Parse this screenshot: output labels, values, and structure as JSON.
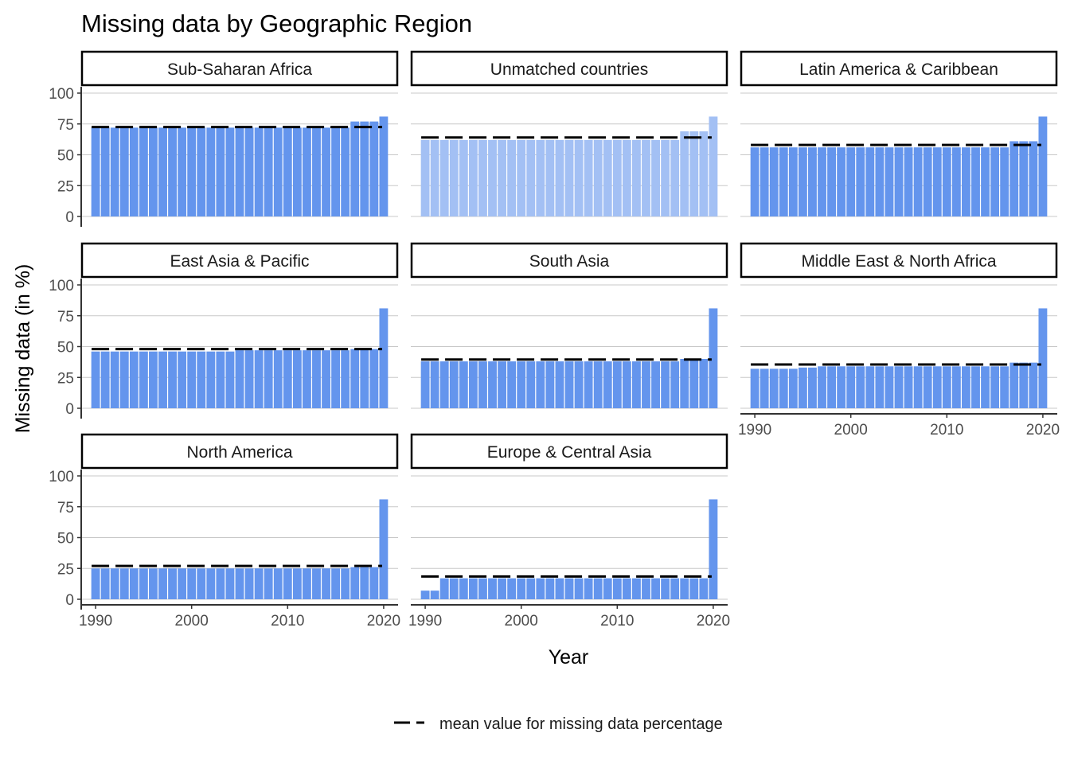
{
  "chart_data": {
    "type": "bar",
    "title": "Missing data by Geographic Region",
    "xlabel": "Year",
    "ylabel": "Missing data (in %)",
    "ylim": [
      0,
      100
    ],
    "yticks": [
      0,
      25,
      50,
      75,
      100
    ],
    "xticks": [
      1990,
      2000,
      2010,
      2020
    ],
    "x": [
      1990,
      1991,
      1992,
      1993,
      1994,
      1995,
      1996,
      1997,
      1998,
      1999,
      2000,
      2001,
      2002,
      2003,
      2004,
      2005,
      2006,
      2007,
      2008,
      2009,
      2010,
      2011,
      2012,
      2013,
      2014,
      2015,
      2016,
      2017,
      2018,
      2019,
      2020
    ],
    "legend": {
      "label": "mean value for missing data percentage",
      "position": "bottom"
    },
    "colors": {
      "bar": "#6495ed",
      "bar_highlight": "#a3c0f4",
      "mean_line": "#000000",
      "grid": "#c8c8c8"
    },
    "facets": [
      {
        "name": "Sub-Saharan Africa",
        "mean": 72.5,
        "highlight": false,
        "values": [
          72,
          72,
          72,
          72,
          72,
          72,
          72,
          72,
          72,
          72,
          72,
          72,
          72,
          72,
          72,
          72,
          72,
          72,
          72,
          72,
          72,
          72,
          72,
          72,
          72,
          72,
          72,
          77,
          77,
          77,
          81
        ]
      },
      {
        "name": "Unmatched countries",
        "mean": 64,
        "highlight": true,
        "values": [
          62,
          62,
          62,
          62,
          62,
          62,
          62,
          62,
          62,
          62,
          62,
          62,
          62,
          62,
          62,
          62,
          62,
          62,
          62,
          62,
          62,
          62,
          62,
          62,
          62,
          62,
          62,
          69,
          69,
          69,
          81
        ]
      },
      {
        "name": "Latin America & Caribbean",
        "mean": 58,
        "highlight": false,
        "values": [
          56,
          56,
          56,
          56,
          56,
          56,
          56,
          56,
          56,
          56,
          56,
          56,
          56,
          56,
          56,
          56,
          56,
          56,
          56,
          56,
          56,
          56,
          56,
          56,
          56,
          56,
          56,
          61,
          61,
          61,
          81
        ]
      },
      {
        "name": "East Asia & Pacific",
        "mean": 48,
        "highlight": false,
        "values": [
          46,
          46,
          46,
          46,
          46,
          46,
          46,
          46,
          46,
          46,
          46,
          46,
          46,
          46,
          46,
          47,
          47,
          47,
          47,
          47,
          47,
          47,
          47,
          47,
          47,
          47,
          47,
          48,
          48,
          48,
          81
        ]
      },
      {
        "name": "South Asia",
        "mean": 39.5,
        "highlight": false,
        "values": [
          38,
          38,
          38,
          38,
          38,
          38,
          38,
          38,
          38,
          38,
          38,
          38,
          38,
          38,
          38,
          38,
          38,
          38,
          38,
          38,
          38,
          38,
          38,
          38,
          38,
          38,
          38,
          40,
          40,
          40,
          81
        ]
      },
      {
        "name": "Middle East & North Africa",
        "mean": 35.5,
        "highlight": false,
        "values": [
          32,
          32,
          32,
          32,
          32,
          33,
          33,
          34,
          34,
          34,
          34,
          34,
          34,
          34,
          34,
          34,
          34,
          34,
          34,
          34,
          34,
          34,
          34,
          34,
          34,
          34,
          34,
          37,
          37,
          37,
          81
        ]
      },
      {
        "name": "North America",
        "mean": 27,
        "highlight": false,
        "values": [
          25,
          25,
          25,
          25,
          25,
          25,
          25,
          25,
          25,
          25,
          25,
          25,
          25,
          25,
          25,
          25,
          25,
          25,
          25,
          25,
          25,
          25,
          25,
          25,
          25,
          25,
          25,
          26,
          26,
          26,
          81
        ]
      },
      {
        "name": "Europe & Central Asia",
        "mean": 18.5,
        "highlight": false,
        "values": [
          7,
          7,
          17,
          17,
          17,
          17,
          17,
          17,
          17,
          17,
          17,
          17,
          17,
          17,
          17,
          17,
          17,
          17,
          17,
          17,
          17,
          17,
          17,
          17,
          17,
          17,
          17,
          17,
          17,
          17,
          81
        ]
      }
    ]
  }
}
